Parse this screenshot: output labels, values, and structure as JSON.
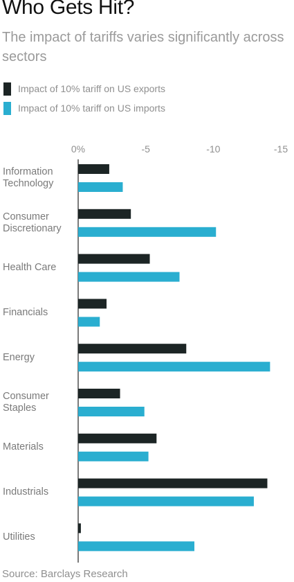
{
  "header": {
    "title": "Who Gets Hit?",
    "subtitle": "The impact of tariffs varies significantly across sectors"
  },
  "legend": {
    "exports_label": "Impact of 10% tariff on US exports",
    "imports_label": "Impact of 10% tariff on US imports"
  },
  "colors": {
    "exports": "#1c2525",
    "imports": "#2aaed0",
    "axis": "#222222"
  },
  "source": "Source: Barclays Research",
  "chart_data": {
    "type": "bar",
    "orientation": "horizontal",
    "title": "Who Gets Hit?",
    "subtitle": "The impact of tariffs varies significantly across sectors",
    "categories": [
      "Information Technology",
      "Consumer Discretionary",
      "Health Care",
      "Financials",
      "Energy",
      "Consumer Staples",
      "Materials",
      "Industrials",
      "Utilities"
    ],
    "category_lines": [
      [
        "Information",
        "Technology"
      ],
      [
        "Consumer",
        "Discretionary"
      ],
      [
        "Health Care"
      ],
      [
        "Financials"
      ],
      [
        "Energy"
      ],
      [
        "Consumer",
        "Staples"
      ],
      [
        "Materials"
      ],
      [
        "Industrials"
      ],
      [
        "Utilities"
      ]
    ],
    "series": [
      {
        "name": "Impact of 10% tariff on US exports",
        "values": [
          -2.3,
          -3.9,
          -5.3,
          -2.1,
          -8.0,
          -3.1,
          -5.8,
          -14.0,
          -0.2
        ]
      },
      {
        "name": "Impact of 10% tariff on US imports",
        "values": [
          -3.3,
          -10.2,
          -7.5,
          -1.6,
          -14.2,
          -4.9,
          -5.2,
          -13.0,
          -8.6
        ]
      }
    ],
    "xlim": [
      0,
      -15
    ],
    "ticks": [
      0,
      -5,
      -10,
      -15
    ],
    "tick_labels": [
      "0%",
      "-5",
      "-10",
      "-15"
    ],
    "grid": false,
    "legend_position": "top-left",
    "xlabel": "",
    "ylabel": ""
  }
}
